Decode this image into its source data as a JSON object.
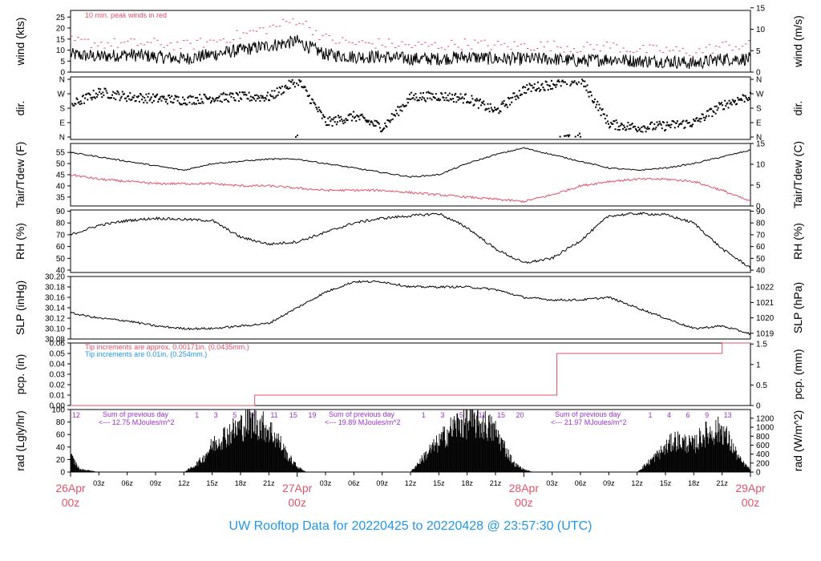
{
  "title": "UW Rooftop Data for 20220425  to  20220428 @ 23:57:30  (UTC)",
  "colors": {
    "red": "#df536b",
    "blue": "#2297e6",
    "purple": "#9932cc",
    "black": "#000000"
  },
  "x_axis": {
    "hours": [
      "03z",
      "06z",
      "09z",
      "12z",
      "15z",
      "18z",
      "21z",
      "03z",
      "06z",
      "09z",
      "12z",
      "15z",
      "18z",
      "21z",
      "03z",
      "06z",
      "09z",
      "12z",
      "15z",
      "18z",
      "21z"
    ],
    "dates": [
      {
        "day": "26Apr",
        "hour": "00z"
      },
      {
        "day": "27Apr",
        "hour": "00z"
      },
      {
        "day": "28Apr",
        "hour": "00z"
      },
      {
        "day": "29Apr",
        "hour": "00z"
      }
    ]
  },
  "chart_data": [
    {
      "type": "line",
      "id": "wind",
      "ylabel_left": "wind (kts)",
      "ylabel_right": "wind (m/s)",
      "ylim": [
        0,
        28
      ],
      "ticks_left": [
        "0",
        "5",
        "10",
        "15",
        "20",
        "25"
      ],
      "ticks_right": [
        "0",
        "5",
        "10",
        "15"
      ],
      "annotation": "10 min. peak winds in red",
      "x_hours": [
        0,
        3,
        6,
        9,
        12,
        15,
        18,
        21,
        24,
        27,
        30,
        33,
        36,
        39,
        42,
        45,
        48,
        51,
        54,
        57,
        60,
        63,
        66,
        69,
        72
      ],
      "series": [
        {
          "values": [
            8,
            7,
            8,
            7,
            6,
            8,
            10,
            12,
            14,
            8,
            7,
            7,
            6,
            6,
            7,
            6,
            6,
            6,
            5,
            6,
            5,
            5,
            4,
            6,
            6
          ]
        },
        {
          "values": [
            14,
            13,
            13,
            13,
            12,
            14,
            17,
            20,
            24,
            15,
            13,
            13,
            12,
            12,
            13,
            12,
            12,
            12,
            11,
            12,
            10,
            10,
            9,
            12,
            12
          ]
        }
      ]
    },
    {
      "type": "scatter",
      "id": "dir",
      "ylabel_left": "dir.",
      "ylabel_right": "dir.",
      "ticks_left": [
        "N",
        "E",
        "S",
        "W",
        "N"
      ],
      "ticks_right": [
        "N",
        "E",
        "S",
        "W",
        "N"
      ],
      "x_hours": [
        0,
        3,
        6,
        9,
        12,
        15,
        18,
        21,
        24,
        27,
        30,
        33,
        36,
        39,
        42,
        45,
        48,
        51,
        54,
        57,
        60,
        63,
        66,
        69,
        72
      ],
      "values_deg": [
        200,
        280,
        250,
        240,
        230,
        245,
        250,
        250,
        355,
        90,
        130,
        60,
        250,
        255,
        240,
        160,
        300,
        330,
        355,
        80,
        60,
        70,
        90,
        200,
        260
      ]
    },
    {
      "type": "line",
      "id": "temp",
      "ylabel_left": "Tair/Tdew (F)",
      "ylabel_right": "Tair/Tdew (C)",
      "ylim_left": [
        31,
        59
      ],
      "ylim_right": [
        0,
        15
      ],
      "ticks_left": [
        "35",
        "40",
        "45",
        "50",
        "55"
      ],
      "ticks_right": [
        "0",
        "5",
        "10",
        "15"
      ],
      "x_hours": [
        0,
        3,
        6,
        9,
        12,
        15,
        18,
        21,
        24,
        27,
        30,
        33,
        36,
        39,
        42,
        45,
        48,
        51,
        54,
        57,
        60,
        63,
        66,
        69,
        72
      ],
      "series": [
        {
          "name": "Tair",
          "values": [
            55,
            53,
            51,
            49,
            47,
            50,
            51,
            52,
            52,
            50,
            48,
            46,
            44,
            45,
            50,
            54,
            57,
            54,
            51,
            48,
            47,
            48,
            50,
            53,
            56
          ]
        },
        {
          "name": "Tdew",
          "values": [
            45,
            43,
            42,
            41,
            41,
            41,
            40,
            40,
            39,
            38,
            38,
            38,
            37,
            36,
            35,
            34,
            33,
            36,
            40,
            42,
            43,
            43,
            42,
            38,
            33
          ]
        }
      ]
    },
    {
      "type": "line",
      "id": "rh",
      "ylabel_left": "RH (%)",
      "ylabel_right": "RH (%)",
      "ylim": [
        38,
        91
      ],
      "ticks_left": [
        "40",
        "50",
        "60",
        "70",
        "80",
        "90"
      ],
      "ticks_right": [
        "40",
        "50",
        "60",
        "70",
        "80",
        "90"
      ],
      "x_hours": [
        0,
        3,
        6,
        9,
        12,
        15,
        18,
        21,
        24,
        27,
        30,
        33,
        36,
        39,
        42,
        45,
        48,
        51,
        54,
        57,
        60,
        63,
        66,
        69,
        72
      ],
      "series": [
        {
          "name": "RH",
          "values": [
            70,
            78,
            82,
            84,
            83,
            82,
            68,
            62,
            64,
            72,
            80,
            84,
            86,
            88,
            76,
            58,
            46,
            50,
            65,
            86,
            88,
            87,
            80,
            58,
            42
          ]
        }
      ]
    },
    {
      "type": "line",
      "id": "slp",
      "ylabel_left": "SLP (inHg)",
      "ylabel_right": "SLP (hPa)",
      "ylim": [
        30.08,
        30.2
      ],
      "ticks_left": [
        "30.08",
        "30.10",
        "30.12",
        "30.14",
        "30.16",
        "30.18",
        "30.20"
      ],
      "ticks_right": [
        "1019",
        "1020",
        "1021",
        "1022"
      ],
      "x_hours": [
        0,
        3,
        6,
        9,
        12,
        15,
        18,
        21,
        24,
        27,
        30,
        33,
        36,
        39,
        42,
        45,
        48,
        51,
        54,
        57,
        60,
        63,
        66,
        69,
        72
      ],
      "series": [
        {
          "name": "SLP",
          "values": [
            30.13,
            30.12,
            30.115,
            30.105,
            30.1,
            30.1,
            30.105,
            30.11,
            30.14,
            30.17,
            30.19,
            30.19,
            30.18,
            30.18,
            30.18,
            30.175,
            30.16,
            30.155,
            30.155,
            30.16,
            30.14,
            30.12,
            30.1,
            30.105,
            30.09
          ]
        }
      ]
    },
    {
      "type": "line",
      "id": "pcp",
      "ylabel_left": "pcp. (in)",
      "ylabel_right": "pcp. (mm)",
      "ylim": [
        0,
        0.06
      ],
      "ticks_left": [
        "0.00",
        "0.01",
        "0.02",
        "0.03",
        "0.04",
        "0.05",
        "0.06"
      ],
      "ticks_right": [
        "0",
        "0.5",
        "1",
        "1.5"
      ],
      "note_red": "Tip increments are approx. 0.00171in. (0.0435mm.)",
      "note_blue": "Tip increments are 0.01in. (0.254mm.)",
      "step_hours": [
        0,
        19.5,
        51.5,
        69,
        72
      ],
      "step_values": [
        0,
        0.01,
        0.05,
        0.06,
        0.06
      ]
    },
    {
      "type": "area",
      "id": "rad",
      "ylabel_left": "rad (Lgly/hr)",
      "ylabel_right": "rad (W/m^2)",
      "ylim": [
        0,
        100
      ],
      "ticks_left": [
        "0",
        "20",
        "40",
        "60",
        "80",
        "100"
      ],
      "ticks_right": [
        "0",
        "200",
        "400",
        "600",
        "800",
        "1000",
        "1200"
      ],
      "hour_labels": [
        "12",
        "1",
        "3",
        "5",
        "7",
        "11",
        "15",
        "19",
        "1",
        "3",
        "5",
        "11",
        "15",
        "20",
        "1",
        "4",
        "6",
        "9",
        "13"
      ],
      "daily_sums": [
        {
          "label": "Sum of previous day",
          "value": "<--- 12.75 MJoules/m^2"
        },
        {
          "label": "Sum of previous day",
          "value": "<--- 19.89 MJoules/m^2"
        },
        {
          "label": "Sum of previous day",
          "value": "<--- 21.97 MJoules/m^2"
        }
      ],
      "x_hours": [
        0,
        1,
        2,
        3,
        12,
        13,
        14,
        15,
        16,
        17,
        18,
        19,
        20,
        21,
        22,
        23,
        24,
        25,
        36,
        37,
        38,
        39,
        40,
        41,
        42,
        43,
        44,
        45,
        46,
        47,
        48,
        49,
        60,
        61,
        62,
        63,
        64,
        65,
        66,
        67,
        68,
        69,
        70,
        71,
        72
      ],
      "values": [
        30,
        5,
        3,
        0,
        0,
        10,
        25,
        50,
        65,
        75,
        85,
        95,
        90,
        80,
        60,
        30,
        10,
        0,
        0,
        20,
        40,
        55,
        75,
        90,
        95,
        92,
        88,
        75,
        45,
        15,
        5,
        0,
        0,
        15,
        30,
        45,
        60,
        55,
        50,
        70,
        75,
        80,
        50,
        20,
        5
      ]
    }
  ]
}
